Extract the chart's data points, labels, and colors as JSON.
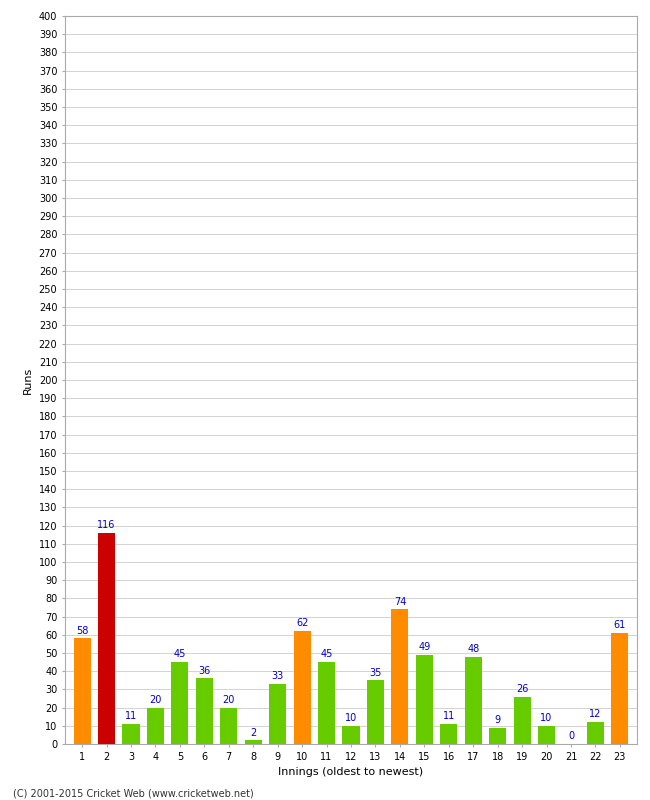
{
  "title": "",
  "xlabel": "Innings (oldest to newest)",
  "ylabel": "Runs",
  "values": [
    58,
    116,
    11,
    20,
    45,
    36,
    20,
    2,
    33,
    62,
    45,
    10,
    35,
    74,
    49,
    11,
    48,
    9,
    26,
    10,
    0,
    12,
    61
  ],
  "innings": [
    1,
    2,
    3,
    4,
    5,
    6,
    7,
    8,
    9,
    10,
    11,
    12,
    13,
    14,
    15,
    16,
    17,
    18,
    19,
    20,
    21,
    22,
    23
  ],
  "bar_colors": [
    "#ff8c00",
    "#cc0000",
    "#66cc00",
    "#66cc00",
    "#66cc00",
    "#66cc00",
    "#66cc00",
    "#66cc00",
    "#66cc00",
    "#ff8c00",
    "#66cc00",
    "#66cc00",
    "#66cc00",
    "#ff8c00",
    "#66cc00",
    "#66cc00",
    "#66cc00",
    "#66cc00",
    "#66cc00",
    "#66cc00",
    "#66cc00",
    "#66cc00",
    "#ff8c00"
  ],
  "ylim": [
    0,
    400
  ],
  "ytick_step": 10,
  "label_color": "#0000cc",
  "label_fontsize": 7,
  "axis_tick_fontsize": 7,
  "axis_label_fontsize": 8,
  "background_color": "#ffffff",
  "grid_color": "#cccccc",
  "footer": "(C) 2001-2015 Cricket Web (www.cricketweb.net)"
}
